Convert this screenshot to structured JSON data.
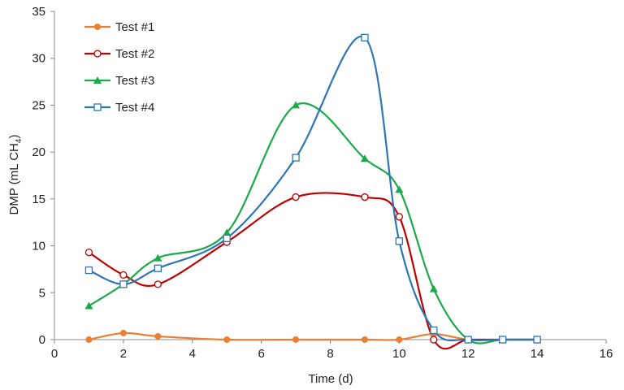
{
  "chart_data": {
    "type": "line",
    "title": "",
    "xlabel": "Time (d)",
    "ylabel_main": "DMP (mL CH",
    "ylabel_sub": "4",
    "ylabel_end": ")",
    "xlim": [
      0,
      16
    ],
    "ylim": [
      0,
      35
    ],
    "xticks": [
      0,
      2,
      4,
      6,
      8,
      10,
      12,
      14,
      16
    ],
    "yticks": [
      0,
      5,
      10,
      15,
      20,
      25,
      30,
      35
    ],
    "grid": false,
    "legend_position": "top-left",
    "smooth": true,
    "series": [
      {
        "name": "Test #1",
        "color": "#ED7D31",
        "marker": "filled-circle",
        "x": [
          1,
          2,
          3,
          5,
          7,
          9,
          10,
          11,
          12,
          13,
          14
        ],
        "y": [
          0,
          0.7,
          0.35,
          0,
          0,
          0,
          0,
          0.6,
          0,
          0,
          0
        ]
      },
      {
        "name": "Test #2",
        "color": "#C00000",
        "marker": "open-circle",
        "x": [
          1,
          2,
          3,
          5,
          7,
          9,
          10,
          11,
          12,
          13,
          14
        ],
        "y": [
          9.3,
          6.9,
          5.9,
          10.4,
          15.2,
          15.2,
          13.1,
          0,
          0,
          0,
          0
        ]
      },
      {
        "name": "Test #3",
        "color": "#1BAA4A",
        "marker": "filled-triangle",
        "x": [
          1,
          2,
          3,
          5,
          7,
          9,
          10,
          11,
          12,
          13,
          14
        ],
        "y": [
          3.6,
          5.9,
          8.7,
          11.4,
          25.0,
          19.3,
          16.0,
          5.4,
          0,
          0,
          0
        ]
      },
      {
        "name": "Test #4",
        "color": "#2E75B6",
        "marker": "open-square",
        "x": [
          1,
          2,
          3,
          5,
          7,
          9,
          10,
          11,
          12,
          13,
          14
        ],
        "y": [
          7.4,
          5.9,
          7.6,
          10.8,
          19.4,
          32.2,
          10.5,
          1.0,
          0,
          0,
          0
        ]
      }
    ]
  }
}
